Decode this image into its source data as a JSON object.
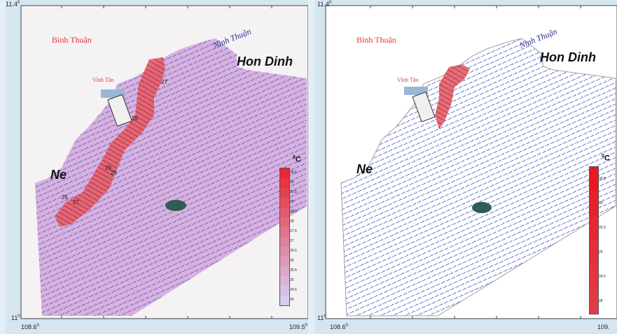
{
  "panels": [
    {
      "lat_top": "11.4",
      "lat_bottom": "11",
      "lon_left": "108.6",
      "lon_right": "109.5",
      "deg": "0",
      "binh_thuan": "Bình Thuận",
      "ninh_thuan": "Ninh Thuận",
      "hon_dinh": "Hon Dinh",
      "vinh_tan": "Vĩnh Tân",
      "ne": "Ne",
      "unit": "C",
      "colorbar_labels": [
        "30.5",
        "30",
        "29.5",
        "29",
        "28.5",
        "28",
        "27.5",
        "27",
        "26.5",
        "26",
        "25.5",
        "25",
        "24.5",
        "24"
      ]
    },
    {
      "lat_top": "11.4",
      "lat_bottom": "11",
      "lon_left": "108.6",
      "lon_right": "109.",
      "deg": "0",
      "binh_thuan": "Bình Thuận",
      "ninh_thuan": "Ninh Thuận",
      "hon_dinh": "Hon Dinh",
      "vinh_tan": "Vĩnh Tân",
      "ne": "Ne",
      "unit": "C",
      "colorbar_labels": [
        "30.5",
        "30",
        "29.5",
        "29",
        "28.5",
        "28"
      ]
    }
  ],
  "contour_labels": [
    "29",
    "27",
    "26",
    "25",
    "28",
    "27"
  ],
  "colors": {
    "sea_temp_fill": "#d9b3df",
    "warm_plume": "#e0505e",
    "vectors": "#2b3fb8",
    "land": "#f7f5f5",
    "island": "#2f5c55"
  }
}
